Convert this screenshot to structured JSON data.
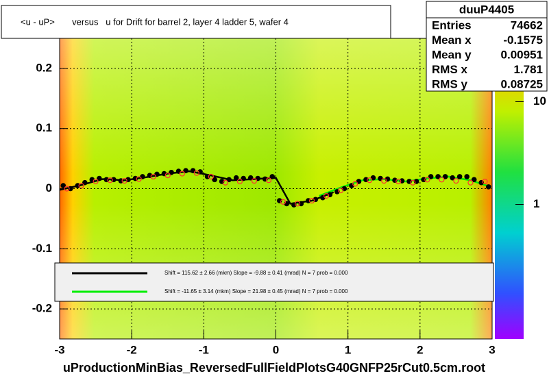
{
  "chart_data": {
    "type": "scatter",
    "title": "<u - uP>       versus   u for Drift for barrel 2, layer 4 ladder 5, wafer 4",
    "xlabel": "uProductionMinBias_ReversedFullFieldPlotsG40GNFP25rCut0.5cm.root",
    "xlim": [
      -3,
      3
    ],
    "ylim": [
      -0.25,
      0.25
    ],
    "xticks": [
      -3,
      -2,
      -1,
      0,
      1,
      2,
      3
    ],
    "yticks": [
      -0.2,
      -0.1,
      0,
      0.1,
      0.2
    ],
    "grid": true,
    "zlog": true,
    "zlim": [
      0.049,
      44
    ],
    "zticks": [
      1,
      10
    ],
    "stats": {
      "title": "duuP4405",
      "rows": [
        [
          "Entries",
          "74662"
        ],
        [
          "Mean x",
          "-0.1575"
        ],
        [
          "Mean y",
          "0.00951"
        ],
        [
          "RMS x",
          "1.781"
        ],
        [
          "RMS y",
          "0.08725"
        ]
      ]
    },
    "markers": [
      {
        "color": "#000000",
        "shape": "dot",
        "x": [
          -2.95,
          -2.85,
          -2.75,
          -2.65,
          -2.55,
          -2.45,
          -2.35,
          -2.25,
          -2.15,
          -2.05,
          -1.95,
          -1.85,
          -1.75,
          -1.65,
          -1.55,
          -1.45,
          -1.35,
          -1.25,
          -1.15,
          -1.05,
          -0.95,
          -0.85,
          -0.75,
          -0.65,
          -0.55,
          -0.45,
          -0.35,
          -0.25,
          -0.15,
          -0.05,
          0.05,
          0.15,
          0.25,
          0.35,
          0.45,
          0.55,
          0.65,
          0.75,
          0.85,
          0.95,
          1.05,
          1.15,
          1.25,
          1.35,
          1.45,
          1.55,
          1.65,
          1.75,
          1.85,
          1.95,
          2.05,
          2.15,
          2.25,
          2.35,
          2.45,
          2.55,
          2.65,
          2.75,
          2.85,
          2.95
        ],
        "values": [
          0.005,
          0.0,
          0.005,
          0.01,
          0.015,
          0.017,
          0.015,
          0.015,
          0.013,
          0.015,
          0.017,
          0.02,
          0.022,
          0.024,
          0.025,
          0.027,
          0.029,
          0.03,
          0.03,
          0.028,
          0.02,
          0.015,
          0.012,
          0.015,
          0.018,
          0.017,
          0.018,
          0.017,
          0.016,
          0.02,
          -0.02,
          -0.025,
          -0.027,
          -0.025,
          -0.02,
          -0.018,
          -0.015,
          -0.01,
          -0.005,
          0.0,
          0.005,
          0.012,
          0.015,
          0.018,
          0.017,
          0.016,
          0.014,
          0.013,
          0.012,
          0.012,
          0.015,
          0.02,
          0.02,
          0.02,
          0.018,
          0.02,
          0.02,
          0.015,
          0.01,
          0.003
        ]
      },
      {
        "color": "#ff3030",
        "shape": "circle",
        "x": [
          -2.9,
          -2.7,
          -2.5,
          -2.3,
          -2.1,
          -1.9,
          -1.7,
          -1.5,
          -1.3,
          -1.1,
          -0.9,
          -0.7,
          -0.5,
          -0.3,
          -0.1,
          0.1,
          0.3,
          0.5,
          0.7,
          0.9,
          1.1,
          1.3,
          1.5,
          1.7,
          1.9,
          2.1,
          2.3,
          2.5,
          2.7,
          2.9
        ],
        "values": [
          0.0,
          0.005,
          0.012,
          0.014,
          0.013,
          0.016,
          0.02,
          0.022,
          0.025,
          0.026,
          0.02,
          0.01,
          0.012,
          0.013,
          0.014,
          -0.022,
          -0.025,
          -0.02,
          -0.012,
          -0.003,
          0.008,
          0.014,
          0.013,
          0.012,
          0.01,
          0.015,
          0.015,
          0.013,
          0.01,
          0.012
        ]
      }
    ],
    "series": [
      {
        "name": "Shift =   115.62 ± 2.66 (mkm) Slope =    -9.88 ± 0.41 (mrad)  N = 7 prob = 0.000",
        "color": "#000000",
        "x": [
          -3,
          -2.7,
          -2.4,
          -2.1,
          -1.8,
          -1.5,
          -1.2,
          -0.9,
          -0.6,
          -0.3,
          0,
          0.2,
          0.5,
          0.8
        ],
        "values": [
          -0.002,
          0.006,
          0.016,
          0.014,
          0.019,
          0.025,
          0.029,
          0.022,
          0.014,
          0.016,
          0.018,
          -0.025,
          -0.02,
          -0.006
        ]
      },
      {
        "name": "Shift =   -11.65 ± 3.14 (mkm) Slope =    21.98 ± 0.45 (mrad)  N = 7 prob = 0.000",
        "color": "#00ee00",
        "x": [
          0.6,
          0.9,
          1.2,
          1.5,
          1.8,
          2.1,
          2.4,
          2.7,
          2.95
        ],
        "values": [
          -0.012,
          0.002,
          0.014,
          0.016,
          0.012,
          0.017,
          0.02,
          0.014,
          0.004
        ]
      }
    ]
  }
}
